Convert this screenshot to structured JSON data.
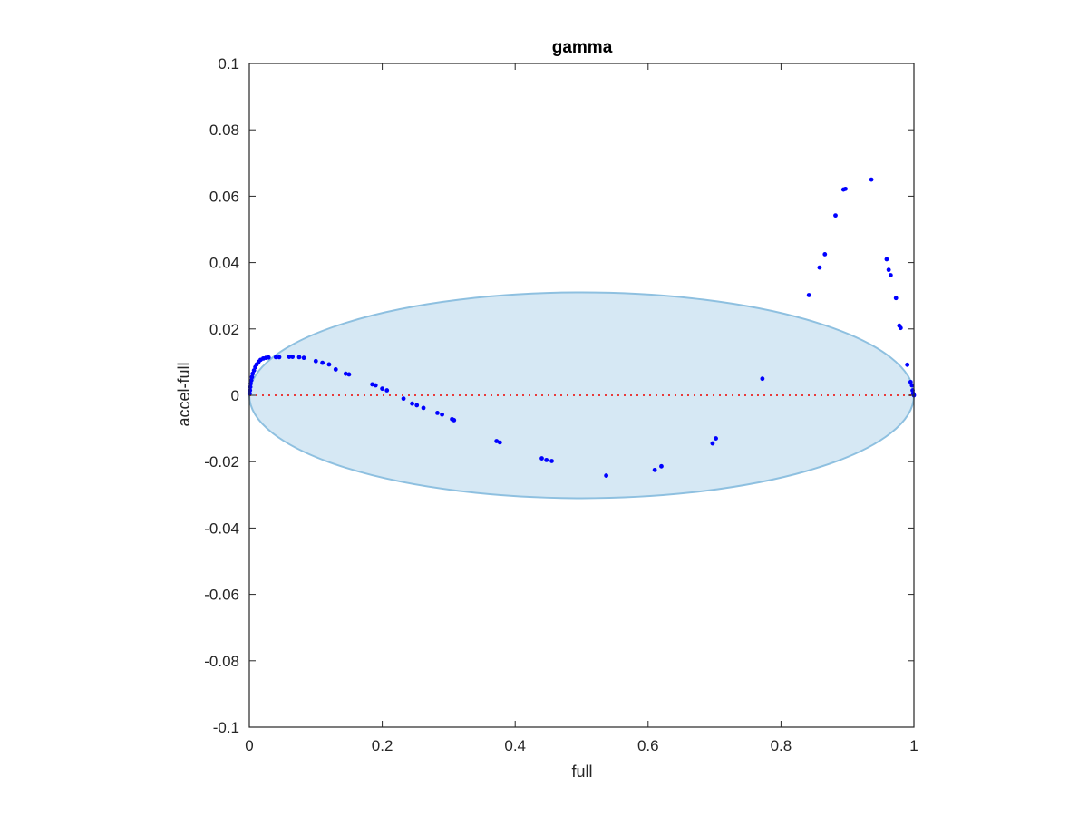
{
  "chart_data": {
    "type": "scatter",
    "title": "gamma",
    "xlabel": "full",
    "ylabel": "accel-full",
    "xlim": [
      0,
      1
    ],
    "ylim": [
      -0.1,
      0.1
    ],
    "xticks": [
      {
        "value": 0,
        "label": "0"
      },
      {
        "value": 0.2,
        "label": "0.2"
      },
      {
        "value": 0.4,
        "label": "0.4"
      },
      {
        "value": 0.6,
        "label": "0.6"
      },
      {
        "value": 0.8,
        "label": "0.8"
      },
      {
        "value": 1,
        "label": "1"
      }
    ],
    "yticks": [
      {
        "value": -0.1,
        "label": "-0.1"
      },
      {
        "value": -0.08,
        "label": "-0.08"
      },
      {
        "value": -0.06,
        "label": "-0.06"
      },
      {
        "value": -0.04,
        "label": "-0.04"
      },
      {
        "value": -0.02,
        "label": "-0.02"
      },
      {
        "value": 0,
        "label": "0"
      },
      {
        "value": 0.02,
        "label": "0.02"
      },
      {
        "value": 0.04,
        "label": "0.04"
      },
      {
        "value": 0.06,
        "label": "0.06"
      },
      {
        "value": 0.08,
        "label": "0.08"
      },
      {
        "value": 0.1,
        "label": "0.1"
      }
    ],
    "grid": false,
    "reference_line": {
      "y": 0,
      "color": "#e83a3a",
      "style": "dotted"
    },
    "ellipse": {
      "center": [
        0.5,
        0
      ],
      "x_radius": 0.5,
      "y_radius": 0.031,
      "fill": "#d6e8f4",
      "stroke": "#8ec0e0"
    },
    "marker_color": "#0000ff",
    "series": [
      {
        "points": [
          [
            0.0005,
            0.0005
          ],
          [
            0.001,
            0.0015
          ],
          [
            0.0015,
            0.0025
          ],
          [
            0.002,
            0.0035
          ],
          [
            0.003,
            0.0045
          ],
          [
            0.004,
            0.0055
          ],
          [
            0.005,
            0.0065
          ],
          [
            0.007,
            0.0075
          ],
          [
            0.009,
            0.0085
          ],
          [
            0.011,
            0.0093
          ],
          [
            0.014,
            0.0101
          ],
          [
            0.017,
            0.0107
          ],
          [
            0.021,
            0.0111
          ],
          [
            0.025,
            0.0113
          ],
          [
            0.029,
            0.0114
          ],
          [
            0.04,
            0.0115
          ],
          [
            0.045,
            0.0115
          ],
          [
            0.06,
            0.0116
          ],
          [
            0.065,
            0.0116
          ],
          [
            0.075,
            0.0115
          ],
          [
            0.082,
            0.0113
          ],
          [
            0.1,
            0.0103
          ],
          [
            0.11,
            0.0098
          ],
          [
            0.12,
            0.0093
          ],
          [
            0.13,
            0.0078
          ],
          [
            0.145,
            0.0065
          ],
          [
            0.15,
            0.0063
          ],
          [
            0.185,
            0.0033
          ],
          [
            0.19,
            0.003
          ],
          [
            0.2,
            0.002
          ],
          [
            0.207,
            0.0015
          ],
          [
            0.232,
            -0.001
          ],
          [
            0.245,
            -0.0025
          ],
          [
            0.252,
            -0.003
          ],
          [
            0.262,
            -0.0038
          ],
          [
            0.283,
            -0.0053
          ],
          [
            0.29,
            -0.0058
          ],
          [
            0.305,
            -0.0072
          ],
          [
            0.308,
            -0.0075
          ],
          [
            0.372,
            -0.0138
          ],
          [
            0.377,
            -0.0142
          ],
          [
            0.44,
            -0.019
          ],
          [
            0.447,
            -0.0195
          ],
          [
            0.455,
            -0.0198
          ],
          [
            0.537,
            -0.0242
          ],
          [
            0.61,
            -0.0225
          ],
          [
            0.62,
            -0.0214
          ],
          [
            0.697,
            -0.0145
          ],
          [
            0.702,
            -0.013
          ],
          [
            0.772,
            0.005
          ],
          [
            0.842,
            0.0302
          ],
          [
            0.858,
            0.0385
          ],
          [
            0.866,
            0.0425
          ],
          [
            0.882,
            0.0542
          ],
          [
            0.894,
            0.062
          ],
          [
            0.897,
            0.0622
          ],
          [
            0.936,
            0.065
          ],
          [
            0.959,
            0.041
          ],
          [
            0.962,
            0.0378
          ],
          [
            0.965,
            0.0362
          ],
          [
            0.973,
            0.0293
          ],
          [
            0.978,
            0.021
          ],
          [
            0.98,
            0.0203
          ],
          [
            0.99,
            0.0092
          ],
          [
            0.995,
            0.004
          ],
          [
            0.997,
            0.003
          ],
          [
            0.998,
            0.0015
          ],
          [
            0.999,
            0.0005
          ],
          [
            1.0,
            0.0
          ]
        ]
      }
    ]
  }
}
